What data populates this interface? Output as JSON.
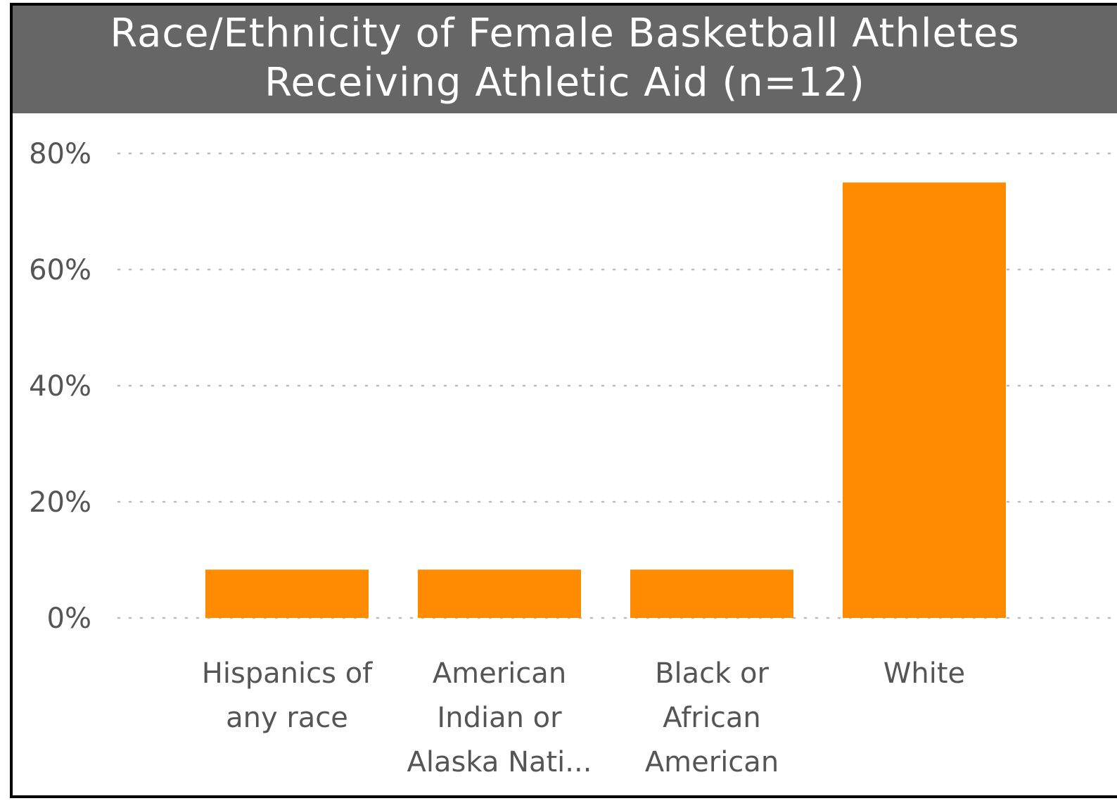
{
  "chart_data": {
    "type": "bar",
    "title": [
      "Race/Ethnicity of Female Basketball Athletes",
      "Receiving Athletic Aid (n=12)"
    ],
    "categories": [
      [
        "Hispanics of",
        "any race"
      ],
      [
        "American",
        "Indian or",
        "Alaska Nati..."
      ],
      [
        "Black or",
        "African",
        "American"
      ],
      [
        "White"
      ]
    ],
    "values": [
      8.33,
      8.33,
      8.33,
      75.0
    ],
    "value_unit": "%",
    "ylim": [
      0,
      80
    ],
    "y_ticks": [
      "0%",
      "20%",
      "40%",
      "60%",
      "80%"
    ],
    "grid": true,
    "grid_style": "dotted",
    "bar_color": "#FF8C00",
    "title_background": "#666666",
    "title_color": "#FFFFFF",
    "gridline_color": "#BBBBBB",
    "label_color": "#555555"
  }
}
